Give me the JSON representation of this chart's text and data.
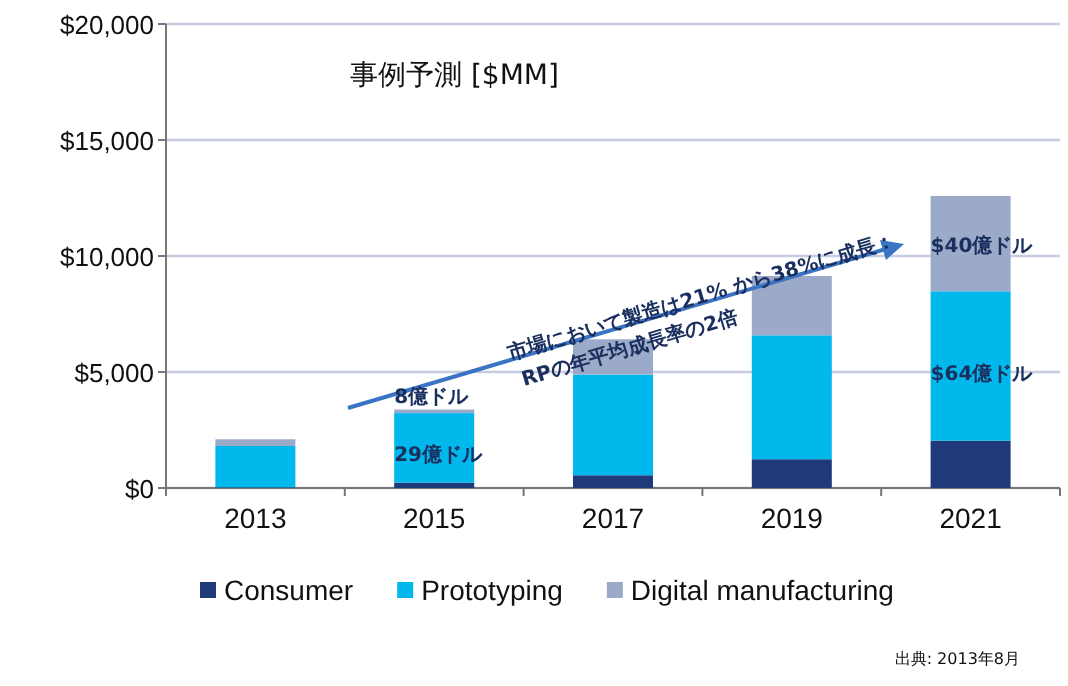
{
  "chart_data": {
    "type": "bar",
    "stacked": true,
    "title": "事例予測 [$MM]",
    "categories": [
      "2013",
      "2015",
      "2017",
      "2019",
      "2021"
    ],
    "series": [
      {
        "name": "Consumer",
        "color": "#1f3a7a",
        "values": [
          30,
          230,
          550,
          1240,
          2040
        ]
      },
      {
        "name": "Prototyping",
        "color": "#00b8ec",
        "values": [
          1780,
          3000,
          4340,
          5340,
          6440
        ]
      },
      {
        "name": "Digital manufacturing",
        "color": "#9aaac8",
        "values": [
          290,
          150,
          1520,
          2560,
          4110
        ]
      }
    ],
    "ylim": [
      0,
      20000
    ],
    "yticks": [
      {
        "value": 0,
        "label": "$0"
      },
      {
        "value": 5000,
        "label": "$5,000"
      },
      {
        "value": 10000,
        "label": "$10,000"
      },
      {
        "value": 15000,
        "label": "$15,000"
      },
      {
        "value": 20000,
        "label": "$20,000"
      }
    ],
    "grid": "y",
    "legend": "bottom",
    "annotations": [
      "市場において製造は21% から38%に成長：",
      "RPの年平均成長率の2倍",
      "8億ドル",
      "29億ドル",
      "$40億ドル",
      "$64億ドル",
      "出典: 2013年8月"
    ]
  }
}
